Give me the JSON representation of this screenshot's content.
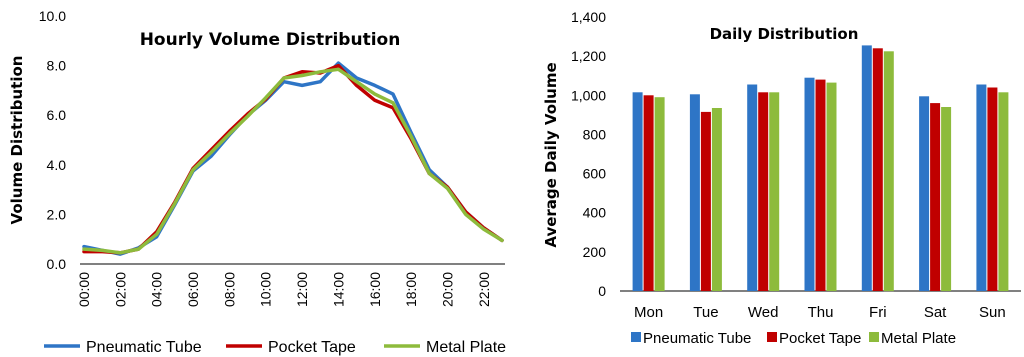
{
  "chart_data": [
    {
      "type": "line",
      "title": "Hourly Volume Distribution",
      "xlabel": "",
      "ylabel": "Volume Distribution",
      "ylim": [
        0,
        10
      ],
      "yticks": [
        "0.0",
        "2.0",
        "4.0",
        "6.0",
        "8.0",
        "10.0"
      ],
      "x": [
        0,
        1,
        2,
        3,
        4,
        5,
        6,
        7,
        8,
        9,
        10,
        11,
        12,
        13,
        14,
        15,
        16,
        17,
        18,
        19,
        20,
        21,
        22,
        23
      ],
      "xtick_labels": [
        "00:00",
        "02:00",
        "04:00",
        "06:00",
        "08:00",
        "10:00",
        "12:00",
        "14:00",
        "16:00",
        "18:00",
        "20:00",
        "22:00"
      ],
      "xtick_hours": [
        0,
        2,
        4,
        6,
        8,
        10,
        12,
        14,
        16,
        18,
        20,
        22
      ],
      "grid": false,
      "legend": "bottom",
      "series": [
        {
          "name": "Pneumatic Tube",
          "color": "#2E75C6",
          "values": [
            0.7,
            0.55,
            0.4,
            0.65,
            1.1,
            2.4,
            3.75,
            4.35,
            5.2,
            6.0,
            6.6,
            7.35,
            7.2,
            7.35,
            8.1,
            7.5,
            7.2,
            6.85,
            5.3,
            3.8,
            3.1,
            2.1,
            1.45,
            0.95
          ]
        },
        {
          "name": "Pocket Tape",
          "color": "#C00000",
          "values": [
            0.5,
            0.5,
            0.45,
            0.6,
            1.3,
            2.5,
            3.85,
            4.6,
            5.35,
            6.05,
            6.65,
            7.5,
            7.75,
            7.7,
            8.0,
            7.2,
            6.6,
            6.3,
            5.05,
            3.65,
            3.1,
            2.1,
            1.45,
            0.95
          ]
        },
        {
          "name": "Metal Plate",
          "color": "#8DBB3C",
          "values": [
            0.6,
            0.55,
            0.45,
            0.6,
            1.2,
            2.45,
            3.8,
            4.5,
            5.25,
            5.95,
            6.7,
            7.5,
            7.6,
            7.75,
            7.85,
            7.35,
            6.85,
            6.5,
            5.15,
            3.65,
            3.05,
            2.0,
            1.4,
            0.95
          ]
        }
      ]
    },
    {
      "type": "bar",
      "title": "Daily Distribution",
      "xlabel": "",
      "ylabel": "Average Daily Volume",
      "ylim": [
        0,
        1400
      ],
      "yticks": [
        "0",
        "200",
        "400",
        "600",
        "800",
        "1,000",
        "1,200",
        "1,400"
      ],
      "categories": [
        "Mon",
        "Tue",
        "Wed",
        "Thu",
        "Fri",
        "Sat",
        "Sun"
      ],
      "grid": false,
      "legend": "bottom",
      "series": [
        {
          "name": "Pneumatic Tube",
          "color": "#2E75C6",
          "values": [
            1015,
            1005,
            1055,
            1090,
            1255,
            995,
            1055
          ]
        },
        {
          "name": "Pocket Tape",
          "color": "#C00000",
          "values": [
            1000,
            915,
            1015,
            1080,
            1240,
            960,
            1040
          ]
        },
        {
          "name": "Metal Plate",
          "color": "#8DBB3C",
          "values": [
            990,
            935,
            1015,
            1065,
            1225,
            940,
            1015
          ]
        }
      ]
    }
  ]
}
